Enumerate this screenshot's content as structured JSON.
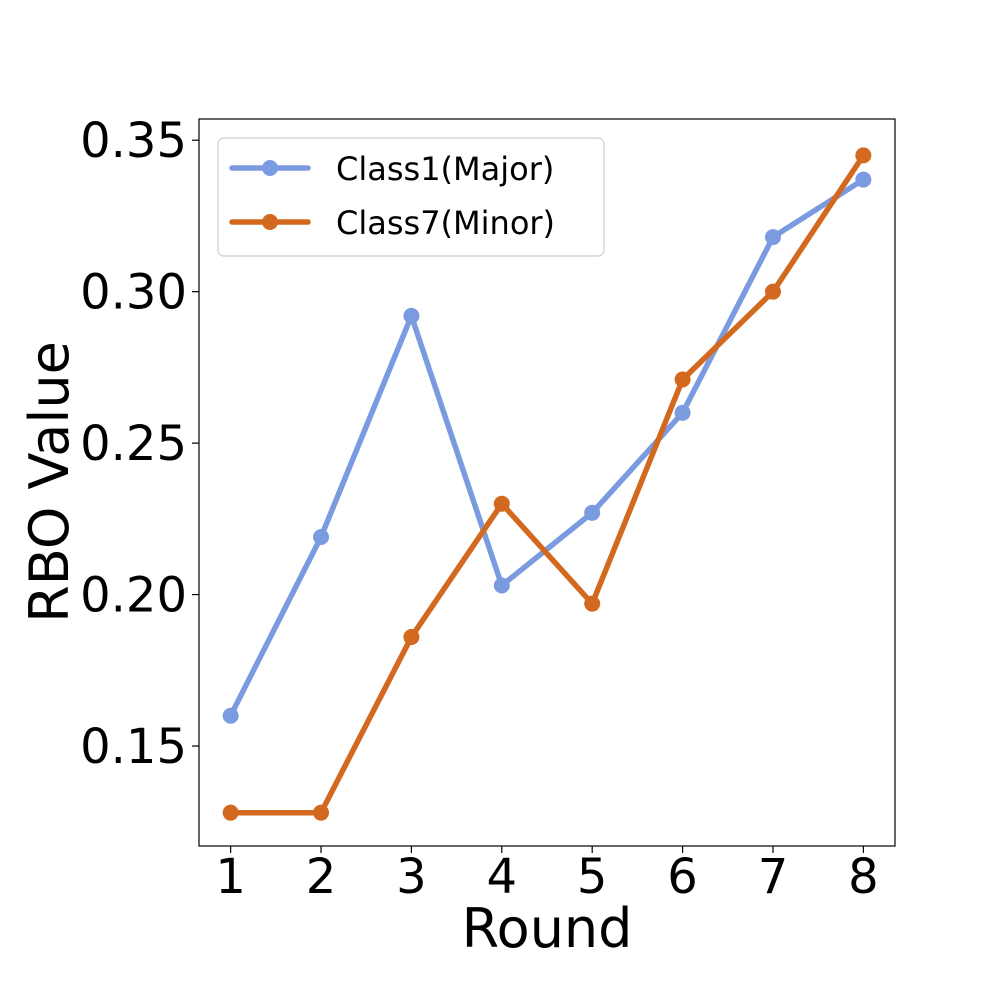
{
  "chart_data": {
    "type": "line",
    "title": "",
    "xlabel": "Round",
    "ylabel": "RBO Value",
    "x": [
      1,
      2,
      3,
      4,
      5,
      6,
      7,
      8
    ],
    "xlim": [
      0.65,
      8.35
    ],
    "ylim": [
      0.117,
      0.357
    ],
    "yticks": [
      0.15,
      0.2,
      0.25,
      0.3,
      0.35
    ],
    "ytick_labels": [
      "0.15",
      "0.20",
      "0.25",
      "0.30",
      "0.35"
    ],
    "xticks": [
      1,
      2,
      3,
      4,
      5,
      6,
      7,
      8
    ],
    "xtick_labels": [
      "1",
      "2",
      "3",
      "4",
      "5",
      "6",
      "7",
      "8"
    ],
    "grid": false,
    "legend_position": "top-left",
    "series": [
      {
        "name": "Class1(Major)",
        "color": "#7b9be0",
        "values": [
          0.16,
          0.219,
          0.292,
          0.203,
          0.227,
          0.26,
          0.318,
          0.337
        ]
      },
      {
        "name": "Class7(Minor)",
        "color": "#d2691e",
        "values": [
          0.128,
          0.128,
          0.186,
          0.23,
          0.197,
          0.271,
          0.3,
          0.345
        ]
      }
    ]
  }
}
